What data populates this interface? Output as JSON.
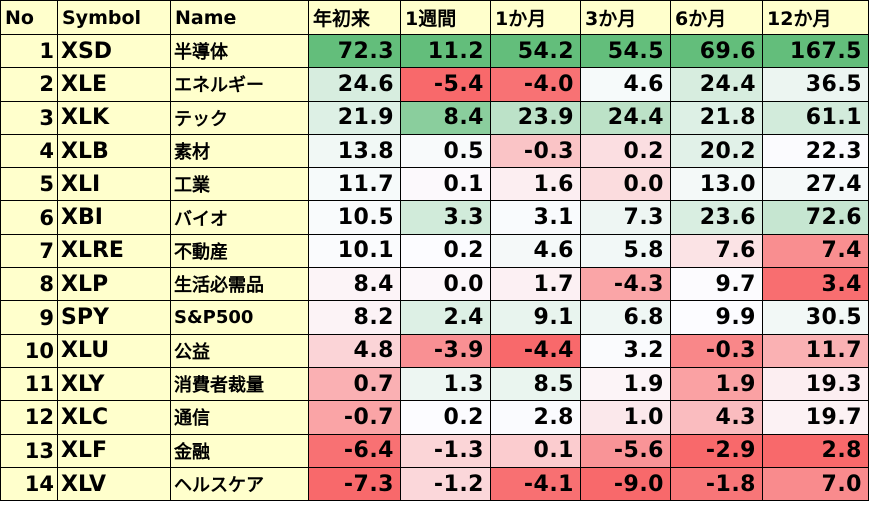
{
  "table": {
    "header": [
      "No",
      "Symbol",
      "Name",
      "年初来",
      "1週間",
      "1か月",
      "3か月",
      "6か月",
      "12か月"
    ],
    "rows": [
      [
        1,
        "XSD",
        "半導体",
        "72.3",
        "11.2",
        "54.2",
        "54.5",
        "69.6",
        "167.5"
      ],
      [
        2,
        "XLE",
        "エネルギー",
        "24.6",
        "-5.4",
        "-4.0",
        "4.6",
        "24.4",
        "36.5"
      ],
      [
        3,
        "XLK",
        "テック",
        "21.9",
        "8.4",
        "23.9",
        "24.4",
        "21.8",
        "61.1"
      ],
      [
        4,
        "XLB",
        "素材",
        "13.8",
        "0.5",
        "-0.3",
        "0.2",
        "20.2",
        "22.3"
      ],
      [
        5,
        "XLI",
        "工業",
        "11.7",
        "0.1",
        "1.6",
        "0.0",
        "13.0",
        "27.4"
      ],
      [
        6,
        "XBI",
        "バイオ",
        "10.5",
        "3.3",
        "3.1",
        "7.3",
        "23.6",
        "72.6"
      ],
      [
        7,
        "XLRE",
        "不動産",
        "10.1",
        "0.2",
        "4.6",
        "5.8",
        "7.6",
        "7.4"
      ],
      [
        8,
        "XLP",
        "生活必需品",
        "8.4",
        "0.0",
        "1.7",
        "-4.3",
        "9.7",
        "3.4"
      ],
      [
        9,
        "SPY",
        "S&P500",
        "8.2",
        "2.4",
        "9.1",
        "6.8",
        "9.9",
        "30.5"
      ],
      [
        10,
        "XLU",
        "公益",
        "4.8",
        "-3.9",
        "-4.4",
        "3.2",
        "-0.3",
        "11.7"
      ],
      [
        11,
        "XLY",
        "消費者裁量",
        "0.7",
        "1.3",
        "8.5",
        "1.9",
        "1.9",
        "19.3"
      ],
      [
        12,
        "XLC",
        "通信",
        "-0.7",
        "0.2",
        "2.8",
        "1.0",
        "4.3",
        "19.7"
      ],
      [
        13,
        "XLF",
        "金融",
        "-6.4",
        "-1.3",
        "0.1",
        "-5.6",
        "-2.9",
        "2.8"
      ],
      [
        14,
        "XLV",
        "ヘルスケア",
        "-7.3",
        "-1.2",
        "-4.1",
        "-9.0",
        "-1.8",
        "7.0"
      ]
    ]
  }
}
